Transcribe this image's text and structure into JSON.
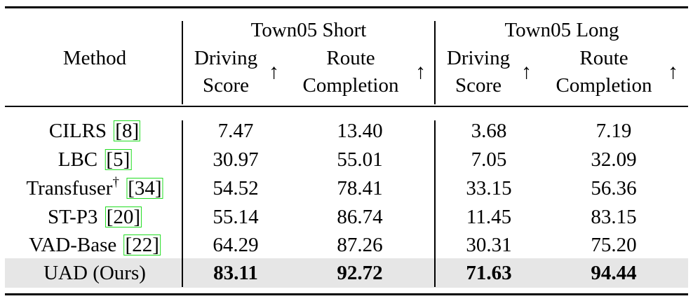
{
  "header": {
    "method": "Method",
    "group_short": "Town05 Short",
    "group_long": "Town05 Long",
    "driving": "Driving",
    "score": "Score",
    "route": "Route",
    "completion": "Completion",
    "arrow": "↑"
  },
  "rows": [
    {
      "name": "CILRS",
      "sup": "",
      "cite": "8",
      "ds_short": "7.47",
      "rc_short": "13.40",
      "ds_long": "3.68",
      "rc_long": "7.19"
    },
    {
      "name": "LBC",
      "sup": "",
      "cite": "5",
      "ds_short": "30.97",
      "rc_short": "55.01",
      "ds_long": "7.05",
      "rc_long": "32.09"
    },
    {
      "name": "Transfuser",
      "sup": "†",
      "cite": "34",
      "ds_short": "54.52",
      "rc_short": "78.41",
      "ds_long": "33.15",
      "rc_long": "56.36"
    },
    {
      "name": "ST-P3",
      "sup": "",
      "cite": "20",
      "ds_short": "55.14",
      "rc_short": "86.74",
      "ds_long": "11.45",
      "rc_long": "83.15"
    },
    {
      "name": "VAD-Base",
      "sup": "",
      "cite": "22",
      "ds_short": "64.29",
      "rc_short": "87.26",
      "ds_long": "30.31",
      "rc_long": "75.20"
    }
  ],
  "ours": {
    "name": "UAD (Ours)",
    "ds_short": "83.11",
    "rc_short": "92.72",
    "ds_long": "71.63",
    "rc_long": "94.44"
  }
}
